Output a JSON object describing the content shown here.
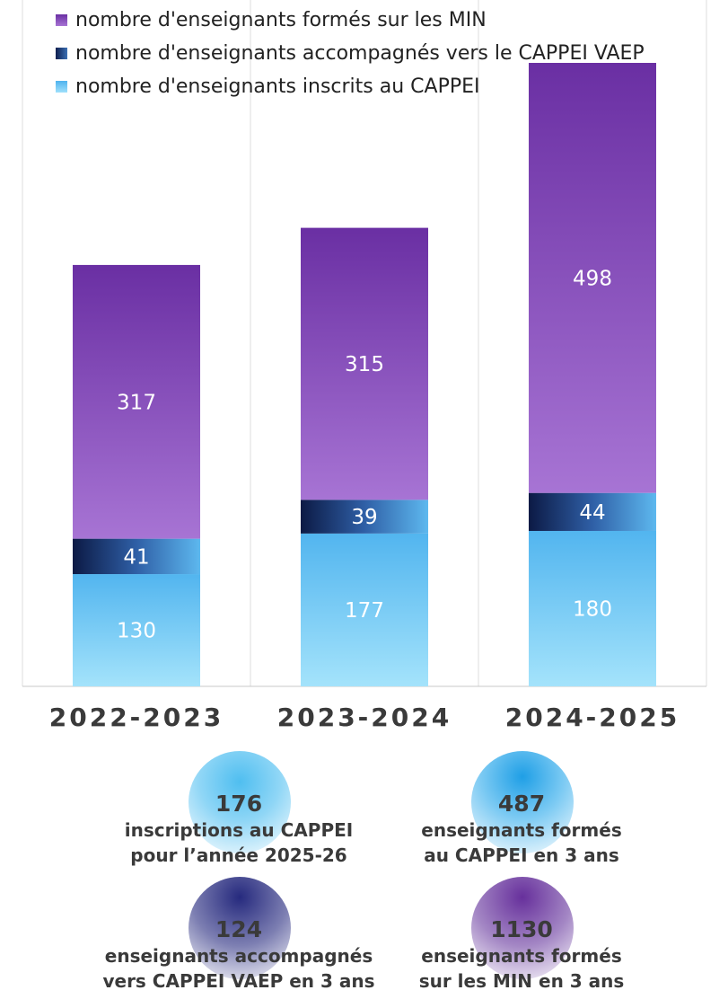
{
  "chart_data": {
    "type": "bar",
    "stacked": true,
    "categories": [
      "2022-2023",
      "2023-2024",
      "2024-2025"
    ],
    "series": [
      {
        "name": "nombre d'enseignants inscrits au CAPPEI",
        "values": [
          130,
          177,
          180
        ]
      },
      {
        "name": "nombre d'enseignants accompagnés vers le CAPPEI VAEP",
        "values": [
          41,
          39,
          44
        ]
      },
      {
        "name": "nombre d'enseignants formés sur les MIN",
        "values": [
          317,
          315,
          498
        ]
      }
    ],
    "legend_order": [
      "nombre d'enseignants formés sur les MIN",
      "nombre d'enseignants accompagnés vers le CAPPEI VAEP",
      "nombre d'enseignants inscrits au CAPPEI"
    ],
    "legend_position": "top-left",
    "ylim": [
      0,
      722
    ],
    "title": "",
    "xlabel": "",
    "ylabel": ""
  },
  "stats": [
    {
      "value": "176",
      "line1": "inscriptions au CAPPEI",
      "line2": "pour l’année 2025-26",
      "color": "#5bc6f0"
    },
    {
      "value": "487",
      "line1": "enseignants formés",
      "line2": "au CAPPEI en 3 ans",
      "color": "#2aa7ea"
    },
    {
      "value": "124",
      "line1": "enseignants accompagnés",
      "line2": "vers CAPPEI VAEP en 3 ans",
      "color": "#2a2f86"
    },
    {
      "value": "1130",
      "line1": "enseignants formés",
      "line2": "sur les MIN en 3 ans",
      "color": "#6a2f9e"
    }
  ]
}
